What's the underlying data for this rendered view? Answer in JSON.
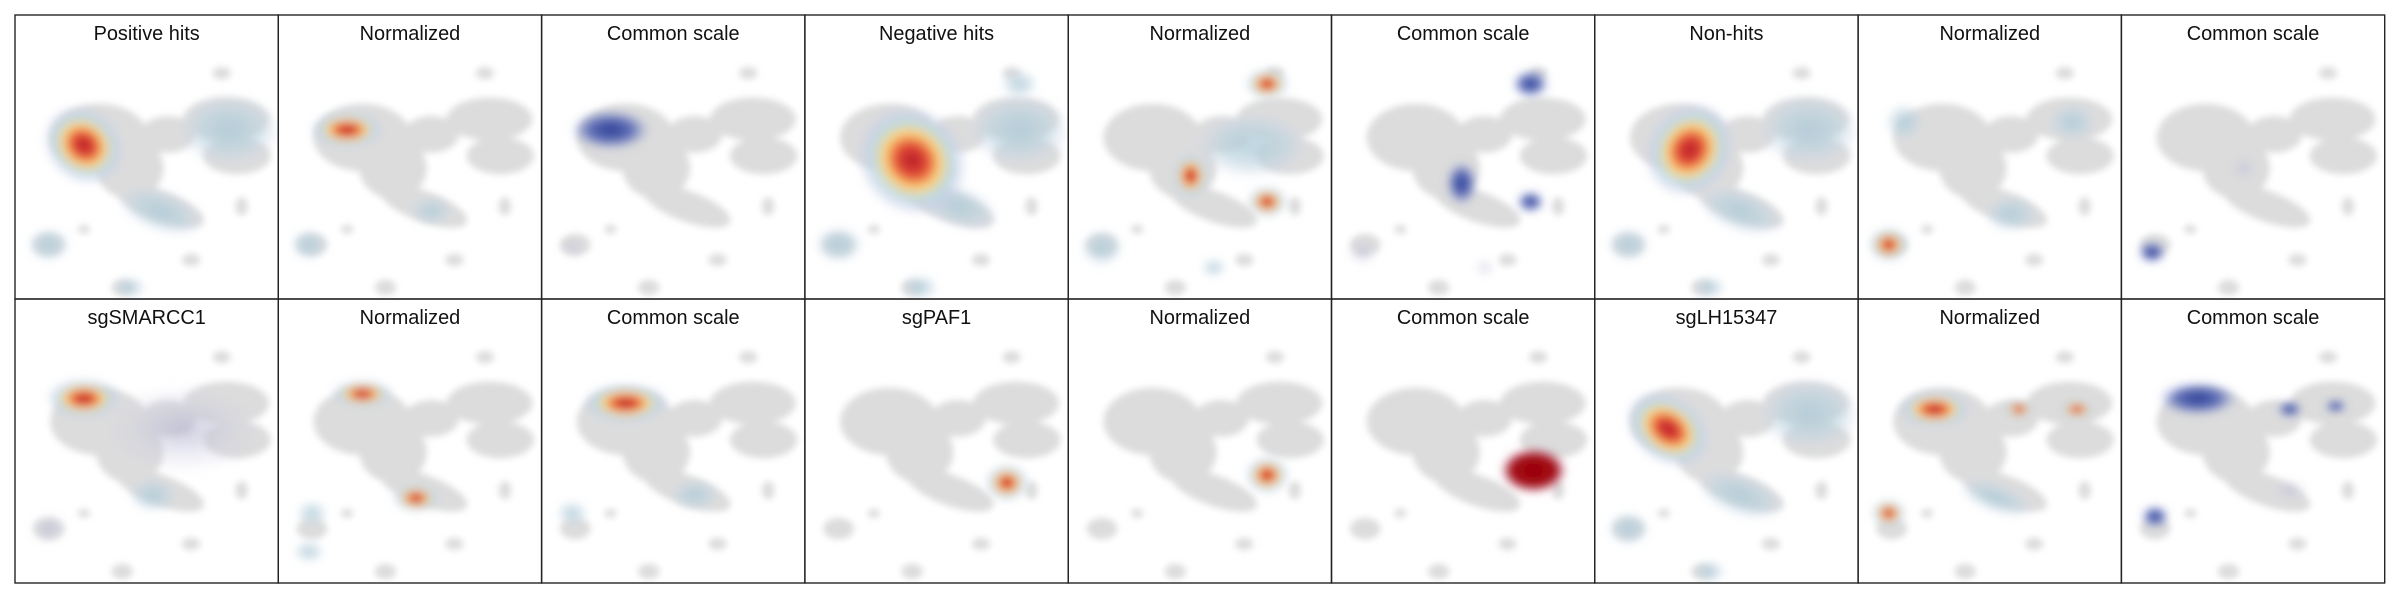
{
  "rows": [
    [
      "Positive hits",
      "Normalized",
      "Common scale",
      "Negative hits",
      "Normalized",
      "Common scale",
      "Non-hits",
      "Normalized",
      "Common scale"
    ],
    [
      "sgSMARCC1",
      "Normalized",
      "Common scale",
      "sgPAF1",
      "Normalized",
      "Common scale",
      "sgLH15347",
      "Normalized",
      "Common scale"
    ]
  ]
}
